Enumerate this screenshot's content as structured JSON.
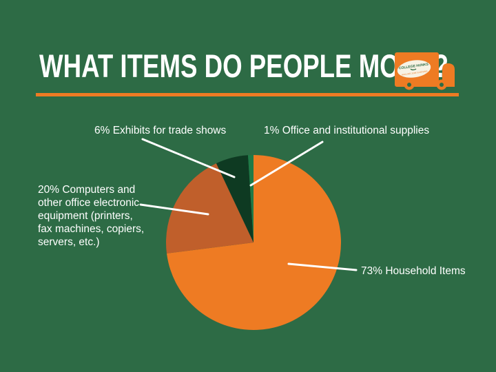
{
  "header": {
    "title": "WHAT ITEMS DO PEOPLE MOVE?"
  },
  "logo": {
    "name": "college-hunks-moving-truck",
    "line1": "COLLEGE HUNKS",
    "line2": "HAULING JUNK & MOVING"
  },
  "colors": {
    "background": "#2d6b45",
    "accent_orange": "#ee7b23",
    "burnt_orange": "#c05f2b",
    "dark_green": "#0e3a22",
    "medium_green": "#1f7a47",
    "text": "#ffffff"
  },
  "chart_data": {
    "type": "pie",
    "title": "WHAT ITEMS DO PEOPLE MOVE?",
    "legend_position": "none (callout labels with white leader lines)",
    "start_angle": "12 o'clock, clockwise",
    "slices": [
      {
        "id": "household",
        "label": "Household Items",
        "pct": 73,
        "color": "#ee7b23",
        "display": "73% Household Items"
      },
      {
        "id": "computers",
        "label": "Computers and other office electronic equipment (printers, fax machines, copiers, servers, etc.)",
        "pct": 20,
        "color": "#c05f2b",
        "display": "20% Computers and\nother office electronic\nequipment (printers,\nfax machines, copiers,\nservers, etc.)"
      },
      {
        "id": "exhibits",
        "label": "Exhibits for trade shows",
        "pct": 6,
        "color": "#0e3a22",
        "display": "6% Exhibits for trade shows"
      },
      {
        "id": "office",
        "label": "Office and institutional supplies",
        "pct": 1,
        "color": "#1f7a47",
        "display": "1% Office and institutional supplies"
      }
    ]
  }
}
